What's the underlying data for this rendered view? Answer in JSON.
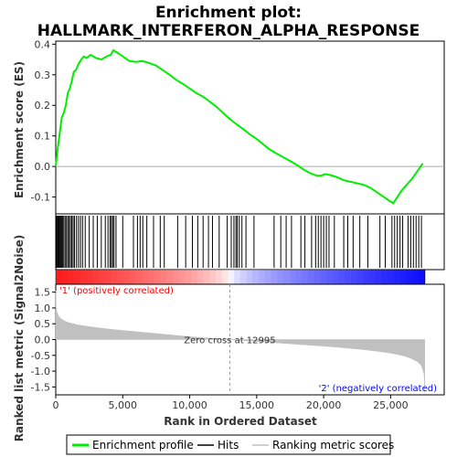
{
  "chart_data": {
    "type": "line",
    "title_line1": "Enrichment plot:",
    "title_line2": "HALLMARK_INTERFERON_ALPHA_RESPONSE",
    "top_panel": {
      "ylabel": "Enrichment score (ES)",
      "ylim": [
        -0.155,
        0.41
      ],
      "yticks": [
        -0.1,
        0.0,
        0.1,
        0.2,
        0.3,
        0.4
      ],
      "ytick_labels": [
        "-0.1",
        "0.0",
        "0.1",
        "0.2",
        "0.3",
        "0.4"
      ],
      "series_name": "Enrichment profile",
      "color": "#00ee00",
      "x": [
        0,
        150,
        300,
        450,
        600,
        750,
        900,
        1050,
        1200,
        1350,
        1500,
        1700,
        1900,
        2100,
        2300,
        2600,
        3000,
        3400,
        3800,
        4100,
        4300,
        4600,
        5000,
        5500,
        6000,
        6500,
        7000,
        7500,
        8000,
        8500,
        9000,
        9500,
        10000,
        10500,
        11000,
        11500,
        12000,
        12500,
        13000,
        13500,
        14000,
        14500,
        15000,
        15500,
        16000,
        16500,
        17000,
        17500,
        18000,
        18500,
        19000,
        19500,
        19800,
        20100,
        20500,
        21000,
        21500,
        22000,
        22500,
        23000,
        23500,
        24000,
        24500,
        25000,
        25200,
        25500,
        25800,
        26200,
        26600,
        27000,
        27400
      ],
      "y": [
        0.0,
        0.06,
        0.11,
        0.16,
        0.175,
        0.2,
        0.24,
        0.255,
        0.28,
        0.31,
        0.315,
        0.335,
        0.35,
        0.36,
        0.355,
        0.365,
        0.355,
        0.35,
        0.36,
        0.365,
        0.38,
        0.372,
        0.36,
        0.345,
        0.342,
        0.345,
        0.338,
        0.33,
        0.315,
        0.3,
        0.283,
        0.27,
        0.255,
        0.24,
        0.228,
        0.212,
        0.195,
        0.175,
        0.155,
        0.138,
        0.122,
        0.105,
        0.09,
        0.072,
        0.055,
        0.042,
        0.03,
        0.018,
        0.005,
        -0.01,
        -0.022,
        -0.03,
        -0.03,
        -0.025,
        -0.028,
        -0.035,
        -0.045,
        -0.05,
        -0.055,
        -0.06,
        -0.07,
        -0.085,
        -0.1,
        -0.115,
        -0.12,
        -0.1,
        -0.08,
        -0.06,
        -0.04,
        -0.015,
        0.01
      ]
    },
    "hits_panel": {
      "series_name": "Hits",
      "hit_positions": [
        60,
        120,
        180,
        240,
        300,
        380,
        450,
        520,
        600,
        700,
        800,
        900,
        1000,
        1100,
        1200,
        1300,
        1400,
        1550,
        1700,
        1850,
        2000,
        2200,
        2500,
        2800,
        3100,
        3400,
        3700,
        3900,
        4050,
        4150,
        4250,
        4350,
        4500,
        5000,
        5800,
        6100,
        6300,
        6500,
        6800,
        7300,
        7800,
        8100,
        9100,
        9700,
        10200,
        10600,
        11000,
        11400,
        11700,
        12200,
        12800,
        13100,
        13300,
        13450,
        13550,
        13700,
        13900,
        14200,
        14800,
        16300,
        16800,
        17200,
        17600,
        18300,
        18600,
        19100,
        19400,
        19600,
        19800,
        20000,
        20200,
        20400,
        20800,
        21500,
        21800,
        22200,
        22700,
        23300,
        24200,
        24600,
        25100,
        25300,
        25500,
        25700,
        25900,
        26300,
        26500,
        26700,
        26900,
        27100,
        27300
      ]
    },
    "rank_panel": {
      "ylabel": "Ranked list metric (Signal2Noise)",
      "ylim": [
        -1.75,
        1.75
      ],
      "yticks": [
        -1.5,
        -1.0,
        -0.5,
        0.0,
        0.5,
        1.0,
        1.5
      ],
      "ytick_labels": [
        "-1.5",
        "-1.0",
        "-0.5",
        "0.0",
        "0.5",
        "1.0",
        "1.5"
      ],
      "series_name": "Ranking metric scores",
      "color": "#c0c0c0",
      "x": [
        0,
        30,
        100,
        200,
        400,
        700,
        1000,
        1500,
        2000,
        3000,
        4000,
        5000,
        6000,
        7000,
        8000,
        9000,
        10000,
        11000,
        12000,
        12995,
        14000,
        15000,
        16000,
        17000,
        18000,
        19000,
        20000,
        21000,
        22000,
        23000,
        24000,
        25000,
        25500,
        26000,
        26500,
        27000,
        27300,
        27500,
        27550
      ],
      "y": [
        1.55,
        1.0,
        0.85,
        0.75,
        0.65,
        0.58,
        0.53,
        0.48,
        0.44,
        0.38,
        0.33,
        0.29,
        0.25,
        0.21,
        0.17,
        0.13,
        0.09,
        0.06,
        0.03,
        0.0,
        -0.03,
        -0.06,
        -0.09,
        -0.12,
        -0.15,
        -0.18,
        -0.21,
        -0.24,
        -0.28,
        -0.32,
        -0.37,
        -0.43,
        -0.47,
        -0.52,
        -0.59,
        -0.7,
        -0.82,
        -1.1,
        -1.7
      ],
      "zero_cross_label": "Zero cross at 12995",
      "zero_cross_x": 12995,
      "pos_label": "'1' (positively correlated)",
      "neg_label": "'2' (negatively correlated)"
    },
    "xlabel": "Rank in Ordered Dataset",
    "xlim": [
      0,
      29000
    ],
    "xticks": [
      0,
      5000,
      10000,
      15000,
      20000,
      25000
    ],
    "xtick_labels": [
      "0",
      "5,000",
      "10,000",
      "15,000",
      "20,000",
      "25,000"
    ],
    "n_genes": 27550,
    "legend": {
      "placement": "bottom",
      "items": [
        {
          "label": "Enrichment profile",
          "color": "#00ee00"
        },
        {
          "label": "Hits",
          "color": "#000000"
        },
        {
          "label": "Ranking metric scores",
          "color": "#c0c0c0"
        }
      ]
    },
    "colors": {
      "positive_band": "#ff0000",
      "negative_band": "#0000ff",
      "pos_text": "#ff0000",
      "neg_text": "#0000ff"
    }
  }
}
